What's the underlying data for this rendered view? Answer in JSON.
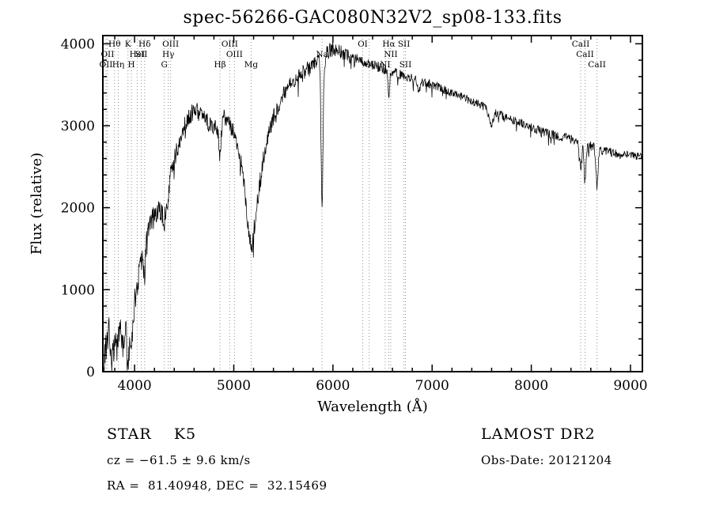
{
  "title": "spec-56266-GAC080N32V2_sp08-133.fits",
  "chart_data": {
    "type": "line",
    "title": "spec-56266-GAC080N32V2_sp08-133.fits",
    "xlabel": "Wavelength (Å)",
    "ylabel": "Flux (relative)",
    "xlim": [
      3680,
      9120
    ],
    "ylim": [
      0,
      4100
    ],
    "xticks": [
      4000,
      5000,
      6000,
      7000,
      8000,
      9000
    ],
    "yticks": [
      0,
      1000,
      2000,
      3000,
      4000
    ],
    "x_minor_step": 200,
    "y_minor_step": 200,
    "line_color": "#000000",
    "marker_line_color": "#909090",
    "noise_seed": 12042012,
    "sample_step": 4,
    "spectral_lines": [
      {
        "wavelength": 3798,
        "label": "Hθ",
        "row": 0
      },
      {
        "wavelength": 3933,
        "label": "K",
        "row": 0
      },
      {
        "wavelength": 4101,
        "label": "Hδ",
        "row": 0
      },
      {
        "wavelength": 4363,
        "label": "OIII",
        "row": 0
      },
      {
        "wavelength": 4959,
        "label": "OIII",
        "row": 0
      },
      {
        "wavelength": 6300,
        "label": "OI",
        "row": 0
      },
      {
        "wavelength": 6563,
        "label": "Hα",
        "row": 0
      },
      {
        "wavelength": 6716,
        "label": "SII",
        "row": 0
      },
      {
        "wavelength": 8498,
        "label": "CaII",
        "row": 0
      },
      {
        "wavelength": 3727,
        "label": "OII",
        "row": 1
      },
      {
        "wavelength": 4026,
        "label": "HeI",
        "row": 1
      },
      {
        "wavelength": 4068,
        "label": "SII",
        "row": 1
      },
      {
        "wavelength": 4340,
        "label": "Hγ",
        "row": 1
      },
      {
        "wavelength": 5007,
        "label": "OIII",
        "row": 1
      },
      {
        "wavelength": 5890,
        "label": "Na",
        "row": 1
      },
      {
        "wavelength": 6583,
        "label": "NII",
        "row": 1
      },
      {
        "wavelength": 8542,
        "label": "CaII",
        "row": 1
      },
      {
        "wavelength": 3712,
        "label": "OII",
        "row": 2
      },
      {
        "wavelength": 3835,
        "label": "Hη",
        "row": 2
      },
      {
        "wavelength": 3968,
        "label": "H",
        "row": 2
      },
      {
        "wavelength": 4300,
        "label": "G",
        "row": 2
      },
      {
        "wavelength": 4861,
        "label": "Hβ",
        "row": 2
      },
      {
        "wavelength": 5175,
        "label": "Mg",
        "row": 2
      },
      {
        "wavelength": 6365,
        "label": "OI",
        "row": 2
      },
      {
        "wavelength": 6527,
        "label": "NI",
        "row": 2
      },
      {
        "wavelength": 6731,
        "label": "SII",
        "row": 2
      },
      {
        "wavelength": 8662,
        "label": "CaII",
        "row": 2
      }
    ],
    "continuum": [
      [
        3680,
        60
      ],
      [
        3700,
        150
      ],
      [
        3720,
        400
      ],
      [
        3740,
        550
      ],
      [
        3760,
        250
      ],
      [
        3790,
        420
      ],
      [
        3820,
        260
      ],
      [
        3850,
        520
      ],
      [
        3880,
        350
      ],
      [
        3910,
        600
      ],
      [
        3940,
        450
      ],
      [
        3970,
        650
      ],
      [
        4000,
        850
      ],
      [
        4030,
        1100
      ],
      [
        4060,
        1300
      ],
      [
        4090,
        1350
      ],
      [
        4120,
        1600
      ],
      [
        4150,
        1750
      ],
      [
        4180,
        1850
      ],
      [
        4220,
        1950
      ],
      [
        4260,
        2050
      ],
      [
        4300,
        2000
      ],
      [
        4340,
        2300
      ],
      [
        4400,
        2600
      ],
      [
        4450,
        2800
      ],
      [
        4500,
        3000
      ],
      [
        4550,
        3100
      ],
      [
        4600,
        3200
      ],
      [
        4650,
        3150
      ],
      [
        4700,
        3100
      ],
      [
        4750,
        3050
      ],
      [
        4800,
        3000
      ],
      [
        4850,
        2950
      ],
      [
        4900,
        3100
      ],
      [
        4950,
        3050
      ],
      [
        5000,
        2950
      ],
      [
        5050,
        2700
      ],
      [
        5100,
        2350
      ],
      [
        5150,
        1700
      ],
      [
        5180,
        1500
      ],
      [
        5210,
        1800
      ],
      [
        5250,
        2200
      ],
      [
        5300,
        2600
      ],
      [
        5350,
        2900
      ],
      [
        5400,
        3100
      ],
      [
        5450,
        3250
      ],
      [
        5500,
        3400
      ],
      [
        5550,
        3500
      ],
      [
        5600,
        3550
      ],
      [
        5650,
        3600
      ],
      [
        5700,
        3650
      ],
      [
        5750,
        3700
      ],
      [
        5800,
        3750
      ],
      [
        5850,
        3800
      ],
      [
        5900,
        3850
      ],
      [
        5950,
        3900
      ],
      [
        6000,
        3950
      ],
      [
        6050,
        3920
      ],
      [
        6100,
        3880
      ],
      [
        6150,
        3850
      ],
      [
        6200,
        3830
      ],
      [
        6300,
        3780
      ],
      [
        6400,
        3740
      ],
      [
        6500,
        3700
      ],
      [
        6600,
        3660
      ],
      [
        6700,
        3620
      ],
      [
        6800,
        3580
      ],
      [
        6900,
        3540
      ],
      [
        7000,
        3500
      ],
      [
        7100,
        3450
      ],
      [
        7200,
        3400
      ],
      [
        7300,
        3350
      ],
      [
        7400,
        3300
      ],
      [
        7500,
        3250
      ],
      [
        7600,
        3180
      ],
      [
        7700,
        3130
      ],
      [
        7800,
        3080
      ],
      [
        7900,
        3030
      ],
      [
        8000,
        2980
      ],
      [
        8100,
        2930
      ],
      [
        8200,
        2900
      ],
      [
        8300,
        2870
      ],
      [
        8400,
        2840
      ],
      [
        8500,
        2780
      ],
      [
        8600,
        2750
      ],
      [
        8700,
        2700
      ],
      [
        8800,
        2680
      ],
      [
        8900,
        2650
      ],
      [
        9000,
        2640
      ],
      [
        9120,
        2620
      ]
    ],
    "noise_profile": [
      [
        3680,
        210
      ],
      [
        3900,
        190
      ],
      [
        4100,
        150
      ],
      [
        4300,
        130
      ],
      [
        4600,
        110
      ],
      [
        5000,
        100
      ],
      [
        5200,
        120
      ],
      [
        5500,
        90
      ],
      [
        5800,
        90
      ],
      [
        6000,
        90
      ],
      [
        6300,
        70
      ],
      [
        6600,
        60
      ],
      [
        7000,
        55
      ],
      [
        7500,
        50
      ],
      [
        8000,
        55
      ],
      [
        8500,
        60
      ],
      [
        9120,
        50
      ]
    ],
    "absorption_lines": [
      {
        "center": 3933,
        "depth": 420,
        "width": 10
      },
      {
        "center": 3968,
        "depth": 400,
        "width": 10
      },
      {
        "center": 4101,
        "depth": 250,
        "width": 8
      },
      {
        "center": 4300,
        "depth": 150,
        "width": 25
      },
      {
        "center": 4340,
        "depth": 200,
        "width": 8
      },
      {
        "center": 4861,
        "depth": 350,
        "width": 10
      },
      {
        "center": 5890,
        "depth": 1800,
        "width": 10
      },
      {
        "center": 6563,
        "depth": 350,
        "width": 8
      },
      {
        "center": 6867,
        "depth": 130,
        "width": 15
      },
      {
        "center": 7594,
        "depth": 180,
        "width": 20
      },
      {
        "center": 8498,
        "depth": 300,
        "width": 10
      },
      {
        "center": 8542,
        "depth": 450,
        "width": 10
      },
      {
        "center": 8662,
        "depth": 450,
        "width": 10
      }
    ]
  },
  "footer": {
    "class_label": "STAR    K5",
    "survey": "LAMOST DR2",
    "cz": "cz = −61.5 ± 9.6 km/s",
    "obs_date": "Obs-Date: 20121204",
    "coords": "RA =  81.40948, DEC =  32.15469"
  }
}
